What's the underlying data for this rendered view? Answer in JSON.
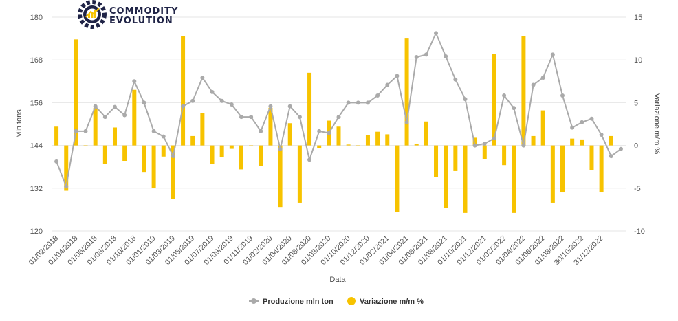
{
  "brand": {
    "line1": "COMMODITY",
    "line2": "EVOLUTION",
    "icon": "gear-chart-logo-icon",
    "colors": {
      "dark": "#1f2346",
      "accent": "#f7c300"
    }
  },
  "chart_data": {
    "type": "bar+line",
    "xlabel": "Data",
    "y_left_label": "Mln tons",
    "y_right_label": "Variazione m/m %",
    "y_left_range": [
      120,
      180
    ],
    "y_left_ticks": [
      120,
      132,
      144,
      156,
      168,
      180
    ],
    "y_right_range": [
      -10,
      15
    ],
    "y_right_ticks": [
      -10,
      -5,
      0,
      5,
      10,
      15
    ],
    "grid": true,
    "legend_position": "bottom-center",
    "x_tick_labels": [
      "01/02/2018",
      "01/04/2018",
      "01/06/2018",
      "01/08/2018",
      "01/10/2018",
      "01/01/2019",
      "01/03/2019",
      "01/05/2019",
      "01/07/2019",
      "01/09/2019",
      "01/11/2019",
      "01/02/2020",
      "01/04/2020",
      "01/06/2020",
      "01/08/2020",
      "01/10/2020",
      "01/12/2020",
      "01/02/2021",
      "01/04/2021",
      "01/06/2021",
      "01/08/2021",
      "01/10/2021",
      "01/12/2021",
      "01/02/2022",
      "01/04/2022",
      "01/06/2022",
      "01/08/2022",
      "30/10/2022",
      "31/12/2022"
    ],
    "x_tick_index": [
      0,
      2,
      4,
      6,
      8,
      10,
      12,
      14,
      16,
      18,
      20,
      22,
      24,
      26,
      28,
      30,
      32,
      34,
      36,
      38,
      40,
      42,
      44,
      46,
      48,
      50,
      52,
      54,
      56
    ],
    "series": [
      {
        "name": "Produzione mln ton",
        "type": "line",
        "axis": "left",
        "color": "#aaaaaa",
        "values": [
          139.5,
          132.5,
          148.0,
          148.0,
          155.0,
          152.0,
          154.8,
          152.5,
          162.0,
          156.0,
          148.0,
          146.5,
          141.0,
          155.0,
          156.5,
          163.0,
          159.0,
          156.5,
          155.5,
          152.0,
          152.0,
          148.0,
          155.0,
          143.0,
          155.0,
          152.0,
          140.0,
          148.0,
          147.5,
          152.0,
          156.0,
          156.0,
          156.0,
          158.0,
          161.0,
          163.5,
          150.5,
          168.8,
          169.5,
          175.5,
          169.0,
          162.5,
          157.0,
          144.0,
          144.5,
          146.0,
          158.0,
          154.5,
          144.0,
          161.0,
          163.0,
          169.5,
          158.0,
          149.0,
          150.5,
          151.5,
          147.0,
          141.0,
          143.0
        ]
      },
      {
        "name": "Variazione m/m %",
        "type": "bar",
        "axis": "right",
        "color": "#f7c300",
        "values": [
          2.2,
          -5.3,
          12.4,
          0,
          4.4,
          -2.2,
          2.1,
          -1.8,
          6.5,
          -3.1,
          -5.0,
          -1.3,
          -6.3,
          12.8,
          1.1,
          3.8,
          -2.2,
          -1.4,
          -0.4,
          -2.8,
          0,
          -2.4,
          4.4,
          -7.2,
          2.6,
          -6.7,
          8.5,
          -0.3,
          2.9,
          2.2,
          0.1,
          0,
          1.2,
          1.6,
          1.3,
          -7.8,
          12.5,
          0.2,
          2.8,
          -3.7,
          -7.3,
          -3.0,
          -7.9,
          0.9,
          -1.6,
          10.7,
          -2.3,
          -7.9,
          12.8,
          1.1,
          4.1,
          -6.7,
          -5.5,
          0.8,
          0.7,
          -2.9,
          -5.5,
          1.1
        ]
      }
    ]
  }
}
